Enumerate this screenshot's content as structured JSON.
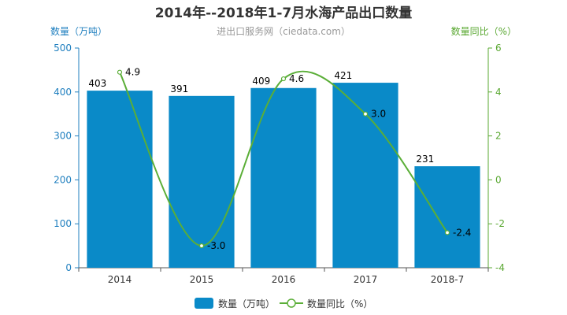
{
  "chart_data": {
    "type": "bar+line",
    "title": "2014年--2018年1-7月水海产品出口数量",
    "subtitle": "进出口服务网（ciedata.com）",
    "categories": [
      "2014",
      "2015",
      "2016",
      "2017",
      "2018-7"
    ],
    "series": [
      {
        "name": "数量（万吨）",
        "type": "bar",
        "axis": "left",
        "values": [
          403,
          391,
          409,
          421,
          231
        ],
        "color": "#0a8ac8"
      },
      {
        "name": "数量同比（%）",
        "type": "line",
        "axis": "right",
        "values": [
          4.9,
          -3.0,
          4.6,
          3.0,
          -2.4
        ],
        "color": "#5aae37"
      }
    ],
    "ylabel_left": "数量（万吨）",
    "ylabel_right": "数量同比（%）",
    "ylim_left": [
      0,
      500
    ],
    "ylim_right": [
      -4,
      6
    ],
    "yticks_left": [
      0,
      100,
      200,
      300,
      400,
      500
    ],
    "yticks_right": [
      -4,
      -2,
      0,
      2,
      4,
      6
    ],
    "grid": false,
    "legend": "bottom-center",
    "axis_left_color": "#1f7fbf",
    "axis_right_color": "#5aa832"
  }
}
